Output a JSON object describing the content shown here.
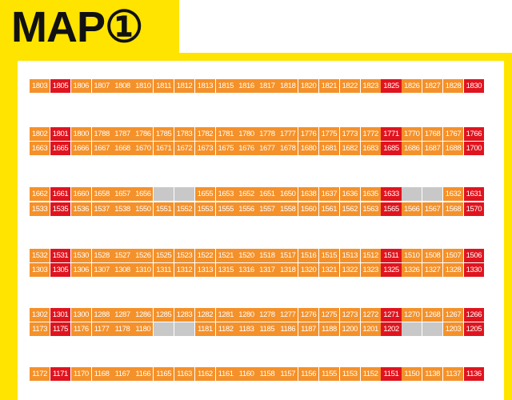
{
  "title": "MAP①",
  "colors": {
    "frame": "#FFE400",
    "orange": "#F4912A",
    "red": "#E0141E",
    "gray": "#C8C8C8"
  },
  "rows": [
    {
      "top": 99,
      "cells": [
        [
          "1803",
          "o"
        ],
        [
          "1805",
          "r"
        ],
        [
          "1806",
          "o"
        ],
        [
          "1807",
          "o"
        ],
        [
          "1808",
          "o"
        ],
        [
          "1810",
          "o"
        ],
        [
          "1811",
          "o"
        ],
        [
          "1812",
          "o"
        ],
        [
          "1813",
          "o"
        ],
        [
          "1815",
          "o"
        ],
        [
          "1816",
          "o"
        ],
        [
          "1817",
          "o"
        ],
        [
          "1818",
          "o"
        ],
        [
          "1820",
          "o"
        ],
        [
          "1821",
          "o"
        ],
        [
          "1822",
          "o"
        ],
        [
          "1823",
          "o"
        ],
        [
          "1825",
          "r"
        ],
        [
          "1826",
          "o"
        ],
        [
          "1827",
          "o"
        ],
        [
          "1828",
          "o"
        ],
        [
          "1830",
          "r"
        ]
      ]
    },
    {
      "top": 159,
      "cells": [
        [
          "1802",
          "o"
        ],
        [
          "1801",
          "r"
        ],
        [
          "1800",
          "o"
        ],
        [
          "1788",
          "o"
        ],
        [
          "1787",
          "o"
        ],
        [
          "1786",
          "o"
        ],
        [
          "1785",
          "o"
        ],
        [
          "1783",
          "o"
        ],
        [
          "1782",
          "o"
        ],
        [
          "1781",
          "o"
        ],
        [
          "1780",
          "o"
        ],
        [
          "1778",
          "o"
        ],
        [
          "1777",
          "o"
        ],
        [
          "1776",
          "o"
        ],
        [
          "1775",
          "o"
        ],
        [
          "1773",
          "o"
        ],
        [
          "1772",
          "o"
        ],
        [
          "1771",
          "r"
        ],
        [
          "1770",
          "o"
        ],
        [
          "1768",
          "o"
        ],
        [
          "1767",
          "o"
        ],
        [
          "1766",
          "r"
        ]
      ]
    },
    {
      "top": 177,
      "cells": [
        [
          "1663",
          "o"
        ],
        [
          "1665",
          "r"
        ],
        [
          "1666",
          "o"
        ],
        [
          "1667",
          "o"
        ],
        [
          "1668",
          "o"
        ],
        [
          "1670",
          "o"
        ],
        [
          "1671",
          "o"
        ],
        [
          "1672",
          "o"
        ],
        [
          "1673",
          "o"
        ],
        [
          "1675",
          "o"
        ],
        [
          "1676",
          "o"
        ],
        [
          "1677",
          "o"
        ],
        [
          "1678",
          "o"
        ],
        [
          "1680",
          "o"
        ],
        [
          "1681",
          "o"
        ],
        [
          "1682",
          "o"
        ],
        [
          "1683",
          "o"
        ],
        [
          "1685",
          "r"
        ],
        [
          "1686",
          "o"
        ],
        [
          "1687",
          "o"
        ],
        [
          "1688",
          "o"
        ],
        [
          "1700",
          "r"
        ]
      ]
    },
    {
      "top": 234,
      "cells": [
        [
          "1662",
          "o"
        ],
        [
          "1661",
          "r"
        ],
        [
          "1660",
          "o"
        ],
        [
          "1658",
          "o"
        ],
        [
          "1657",
          "o"
        ],
        [
          "1656",
          "o"
        ],
        [
          "",
          "g"
        ],
        [
          "",
          "g"
        ],
        [
          "1655",
          "o"
        ],
        [
          "1653",
          "o"
        ],
        [
          "1652",
          "o"
        ],
        [
          "1651",
          "o"
        ],
        [
          "1650",
          "o"
        ],
        [
          "1638",
          "o"
        ],
        [
          "1637",
          "o"
        ],
        [
          "1636",
          "o"
        ],
        [
          "1635",
          "o"
        ],
        [
          "1633",
          "r"
        ],
        [
          "",
          "g"
        ],
        [
          "",
          "g"
        ],
        [
          "1632",
          "o"
        ],
        [
          "1631",
          "r"
        ]
      ]
    },
    {
      "top": 253,
      "cells": [
        [
          "1533",
          "o"
        ],
        [
          "1535",
          "r"
        ],
        [
          "1536",
          "o"
        ],
        [
          "1537",
          "o"
        ],
        [
          "1538",
          "o"
        ],
        [
          "1550",
          "o"
        ],
        [
          "1551",
          "o"
        ],
        [
          "1552",
          "o"
        ],
        [
          "1553",
          "o"
        ],
        [
          "1555",
          "o"
        ],
        [
          "1556",
          "o"
        ],
        [
          "1557",
          "o"
        ],
        [
          "1558",
          "o"
        ],
        [
          "1560",
          "o"
        ],
        [
          "1561",
          "o"
        ],
        [
          "1562",
          "o"
        ],
        [
          "1563",
          "o"
        ],
        [
          "1565",
          "r"
        ],
        [
          "1566",
          "o"
        ],
        [
          "1567",
          "o"
        ],
        [
          "1568",
          "o"
        ],
        [
          "1570",
          "r"
        ]
      ]
    },
    {
      "top": 311,
      "cells": [
        [
          "1532",
          "o"
        ],
        [
          "1531",
          "r"
        ],
        [
          "1530",
          "o"
        ],
        [
          "1528",
          "o"
        ],
        [
          "1527",
          "o"
        ],
        [
          "1526",
          "o"
        ],
        [
          "1525",
          "o"
        ],
        [
          "1523",
          "o"
        ],
        [
          "1522",
          "o"
        ],
        [
          "1521",
          "o"
        ],
        [
          "1520",
          "o"
        ],
        [
          "1518",
          "o"
        ],
        [
          "1517",
          "o"
        ],
        [
          "1516",
          "o"
        ],
        [
          "1515",
          "o"
        ],
        [
          "1513",
          "o"
        ],
        [
          "1512",
          "o"
        ],
        [
          "1511",
          "r"
        ],
        [
          "1510",
          "o"
        ],
        [
          "1508",
          "o"
        ],
        [
          "1507",
          "o"
        ],
        [
          "1506",
          "r"
        ]
      ]
    },
    {
      "top": 329,
      "cells": [
        [
          "1303",
          "o"
        ],
        [
          "1305",
          "r"
        ],
        [
          "1306",
          "o"
        ],
        [
          "1307",
          "o"
        ],
        [
          "1308",
          "o"
        ],
        [
          "1310",
          "o"
        ],
        [
          "1311",
          "o"
        ],
        [
          "1312",
          "o"
        ],
        [
          "1313",
          "o"
        ],
        [
          "1315",
          "o"
        ],
        [
          "1316",
          "o"
        ],
        [
          "1317",
          "o"
        ],
        [
          "1318",
          "o"
        ],
        [
          "1320",
          "o"
        ],
        [
          "1321",
          "o"
        ],
        [
          "1322",
          "o"
        ],
        [
          "1323",
          "o"
        ],
        [
          "1325",
          "r"
        ],
        [
          "1326",
          "o"
        ],
        [
          "1327",
          "o"
        ],
        [
          "1328",
          "o"
        ],
        [
          "1330",
          "r"
        ]
      ]
    },
    {
      "top": 385,
      "cells": [
        [
          "1302",
          "o"
        ],
        [
          "1301",
          "r"
        ],
        [
          "1300",
          "o"
        ],
        [
          "1288",
          "o"
        ],
        [
          "1287",
          "o"
        ],
        [
          "1286",
          "o"
        ],
        [
          "1285",
          "o"
        ],
        [
          "1283",
          "o"
        ],
        [
          "1282",
          "o"
        ],
        [
          "1281",
          "o"
        ],
        [
          "1280",
          "o"
        ],
        [
          "1278",
          "o"
        ],
        [
          "1277",
          "o"
        ],
        [
          "1276",
          "o"
        ],
        [
          "1275",
          "o"
        ],
        [
          "1273",
          "o"
        ],
        [
          "1272",
          "o"
        ],
        [
          "1271",
          "r"
        ],
        [
          "1270",
          "o"
        ],
        [
          "1268",
          "o"
        ],
        [
          "1267",
          "o"
        ],
        [
          "1266",
          "r"
        ]
      ]
    },
    {
      "top": 403,
      "cells": [
        [
          "1173",
          "o"
        ],
        [
          "1175",
          "r"
        ],
        [
          "1176",
          "o"
        ],
        [
          "1177",
          "o"
        ],
        [
          "1178",
          "o"
        ],
        [
          "1180",
          "o"
        ],
        [
          "",
          "g"
        ],
        [
          "",
          "g"
        ],
        [
          "1181",
          "o"
        ],
        [
          "1182",
          "o"
        ],
        [
          "1183",
          "o"
        ],
        [
          "1185",
          "o"
        ],
        [
          "1186",
          "o"
        ],
        [
          "1187",
          "o"
        ],
        [
          "1188",
          "o"
        ],
        [
          "1200",
          "o"
        ],
        [
          "1201",
          "o"
        ],
        [
          "1202",
          "r"
        ],
        [
          "",
          "g"
        ],
        [
          "",
          "g"
        ],
        [
          "1203",
          "o"
        ],
        [
          "1205",
          "r"
        ]
      ]
    },
    {
      "top": 459,
      "cells": [
        [
          "1172",
          "o"
        ],
        [
          "1171",
          "r"
        ],
        [
          "1170",
          "o"
        ],
        [
          "1168",
          "o"
        ],
        [
          "1167",
          "o"
        ],
        [
          "1166",
          "o"
        ],
        [
          "1165",
          "o"
        ],
        [
          "1163",
          "o"
        ],
        [
          "1162",
          "o"
        ],
        [
          "1161",
          "o"
        ],
        [
          "1160",
          "o"
        ],
        [
          "1158",
          "o"
        ],
        [
          "1157",
          "o"
        ],
        [
          "1156",
          "o"
        ],
        [
          "1155",
          "o"
        ],
        [
          "1153",
          "o"
        ],
        [
          "1152",
          "o"
        ],
        [
          "1151",
          "r"
        ],
        [
          "1150",
          "o"
        ],
        [
          "1138",
          "o"
        ],
        [
          "1137",
          "o"
        ],
        [
          "1136",
          "r"
        ]
      ]
    }
  ]
}
